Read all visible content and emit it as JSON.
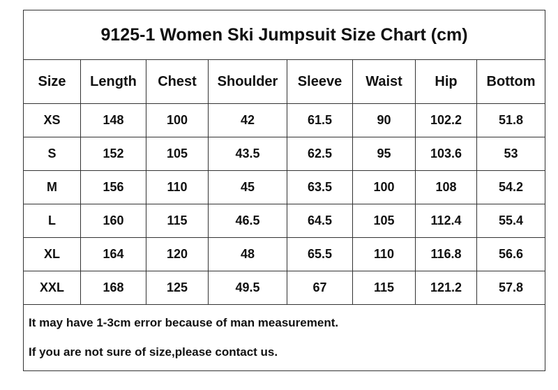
{
  "table": {
    "title": "9125-1 Women Ski Jumpsuit Size Chart (cm)",
    "header": [
      "Size",
      "Length",
      "Chest",
      "Shoulder",
      "Sleeve",
      "Waist",
      "Hip",
      "Bottom"
    ],
    "rows": [
      [
        "XS",
        148,
        100,
        42,
        61.5,
        90,
        102.2,
        51.8
      ],
      [
        "S",
        152,
        105,
        43.5,
        62.5,
        95,
        103.6,
        53
      ],
      [
        "M",
        156,
        110,
        45,
        63.5,
        100,
        108,
        54.2
      ],
      [
        "L",
        160,
        115,
        46.5,
        64.5,
        105,
        112.4,
        55.4
      ],
      [
        "XL",
        164,
        120,
        48,
        65.5,
        110,
        116.8,
        56.6
      ],
      [
        "XXL",
        168,
        125,
        49.5,
        67,
        115,
        121.2,
        57.8
      ]
    ],
    "notes": [
      "It may have 1-3cm error because of man measurement.",
      "If you are not sure of size,please contact us."
    ]
  }
}
